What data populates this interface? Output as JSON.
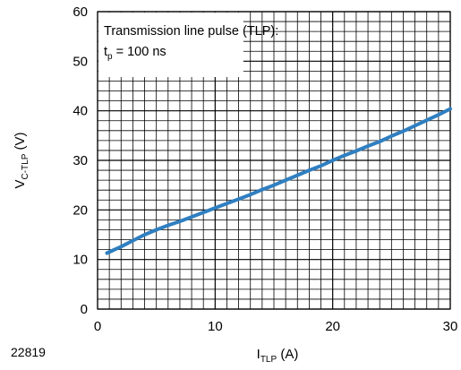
{
  "figure_id": "22819",
  "colors": {
    "series": "#2f7fc1",
    "grid": "#000000",
    "frame": "#000000"
  },
  "chart_data": {
    "type": "line",
    "title": "",
    "xlabel": {
      "main": "I",
      "sub": "TLP",
      "unit": " (A)"
    },
    "ylabel": {
      "main": "V",
      "sub": "C-TLP",
      "unit": " (V)"
    },
    "xlim": [
      0,
      30
    ],
    "ylim": [
      0,
      60
    ],
    "x_ticks": [
      0,
      10,
      20,
      30
    ],
    "y_ticks": [
      0,
      10,
      20,
      30,
      40,
      50,
      60
    ],
    "x_minor_step": 1,
    "y_minor_step": 2,
    "grid": true,
    "annotation": {
      "line1": "Transmission line pulse (TLP):",
      "line2_main": "t",
      "line2_sub": "p",
      "line2_rest": " = 100 ns",
      "location": "top-left"
    },
    "series": [
      {
        "x": [
          0.8,
          2,
          3,
          4,
          5,
          6,
          7,
          8,
          9,
          10,
          11,
          12,
          13,
          14,
          15,
          16,
          17,
          18,
          19,
          20,
          21,
          22,
          23,
          24,
          25,
          26,
          27,
          28,
          29,
          30
        ],
        "y": [
          11.3,
          12.6,
          13.8,
          15.0,
          16.0,
          16.9,
          17.7,
          18.6,
          19.5,
          20.4,
          21.3,
          22.2,
          23.1,
          24.1,
          25.0,
          26.0,
          27.0,
          28.0,
          28.9,
          30.0,
          31.0,
          31.9,
          32.9,
          33.8,
          34.9,
          35.9,
          37.0,
          38.1,
          39.2,
          40.4
        ]
      }
    ]
  }
}
